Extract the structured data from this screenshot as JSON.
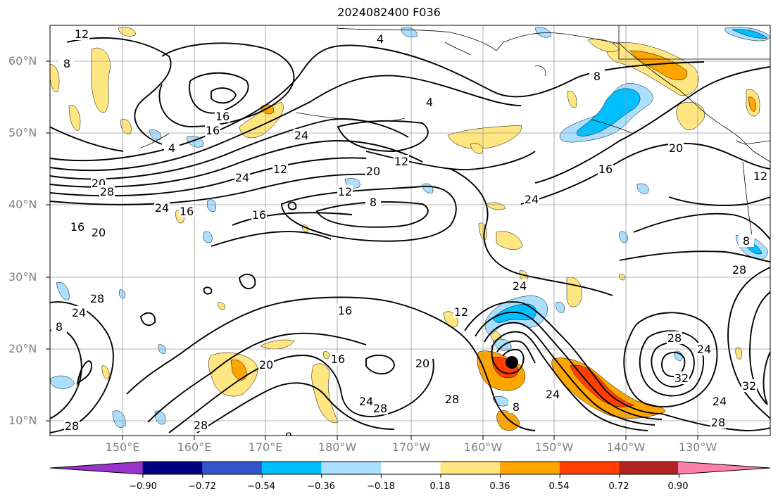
{
  "title": "2024082400 F036",
  "map": {
    "lat_labels": [
      "60°N",
      "50°N",
      "40°N",
      "30°N",
      "20°N",
      "10°N"
    ],
    "lon_labels": [
      "150°E",
      "160°E",
      "170°E",
      "180°W",
      "170°W",
      "160°W",
      "150°W",
      "140°W",
      "130°W"
    ],
    "contour_color": "#000000",
    "land_color": "#ffffff",
    "grid_color": "#9a9a9a"
  },
  "contour_labels": [
    {
      "text": "12"
    },
    {
      "text": "4"
    },
    {
      "text": "8"
    },
    {
      "text": "4"
    },
    {
      "text": "16"
    },
    {
      "text": "16"
    },
    {
      "text": "24"
    },
    {
      "text": "4"
    },
    {
      "text": "20"
    },
    {
      "text": "28"
    },
    {
      "text": "24"
    },
    {
      "text": "24"
    },
    {
      "text": "12"
    },
    {
      "text": "20"
    },
    {
      "text": "12"
    },
    {
      "text": "12"
    },
    {
      "text": "8"
    },
    {
      "text": "16"
    },
    {
      "text": "16"
    },
    {
      "text": "24"
    },
    {
      "text": "16"
    },
    {
      "text": "20"
    },
    {
      "text": "16"
    },
    {
      "text": "8"
    },
    {
      "text": "20"
    },
    {
      "text": "12"
    },
    {
      "text": "8"
    },
    {
      "text": "28"
    },
    {
      "text": "28"
    },
    {
      "text": "24"
    },
    {
      "text": "8"
    },
    {
      "text": "24"
    },
    {
      "text": "12"
    },
    {
      "text": "16"
    },
    {
      "text": "16"
    },
    {
      "text": "20"
    },
    {
      "text": "20"
    },
    {
      "text": "28"
    },
    {
      "text": "28"
    },
    {
      "text": "24"
    },
    {
      "text": "8"
    },
    {
      "text": "28"
    },
    {
      "text": "24"
    },
    {
      "text": "32"
    },
    {
      "text": "28"
    },
    {
      "text": "24"
    },
    {
      "text": "32"
    },
    {
      "text": "28"
    },
    {
      "text": "28"
    },
    {
      "text": "24"
    },
    {
      "text": "8"
    }
  ],
  "colorbar": {
    "colors": [
      "#9933cc",
      "#000080",
      "#3355cc",
      "#00bfff",
      "#aadfff",
      "#ffffff",
      "#ffe680",
      "#ffa500",
      "#ff4000",
      "#b22222",
      "#ff80a8"
    ],
    "tick_labels": [
      "−0.90",
      "−0.72",
      "−0.54",
      "−0.36",
      "−0.18",
      "0.18",
      "0.36",
      "0.54",
      "0.72",
      "0.90"
    ]
  }
}
